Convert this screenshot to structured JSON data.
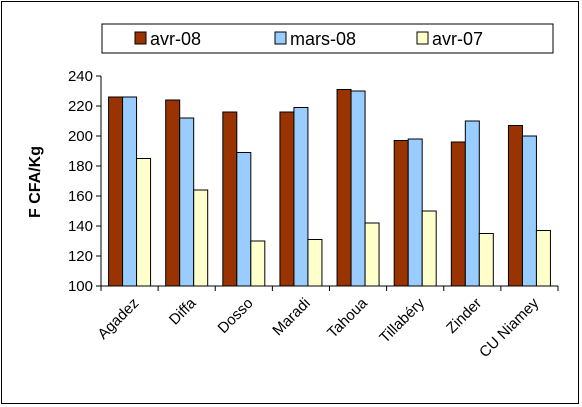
{
  "chart_data": {
    "type": "bar",
    "ylabel": "F CFA/Kg",
    "xlabel": "",
    "title": "",
    "ylim": [
      100,
      240
    ],
    "yticks": [
      100,
      120,
      140,
      160,
      180,
      200,
      220,
      240
    ],
    "grid": false,
    "legend_position": "top",
    "categories": [
      "Agadez",
      "Diffa",
      "Dosso",
      "Maradi",
      "Tahoua",
      "Tillabéry",
      "Zinder",
      "CU Niamey"
    ],
    "series": [
      {
        "name": "avr-08",
        "color": "#993300",
        "values": [
          226,
          224,
          216,
          216,
          231,
          197,
          196,
          207
        ]
      },
      {
        "name": "mars-08",
        "color": "#99CCFF",
        "values": [
          226,
          212,
          189,
          219,
          230,
          198,
          210,
          200
        ]
      },
      {
        "name": "avr-07",
        "color": "#FFFFCC",
        "values": [
          185,
          164,
          130,
          131,
          142,
          150,
          135,
          137
        ]
      }
    ]
  }
}
